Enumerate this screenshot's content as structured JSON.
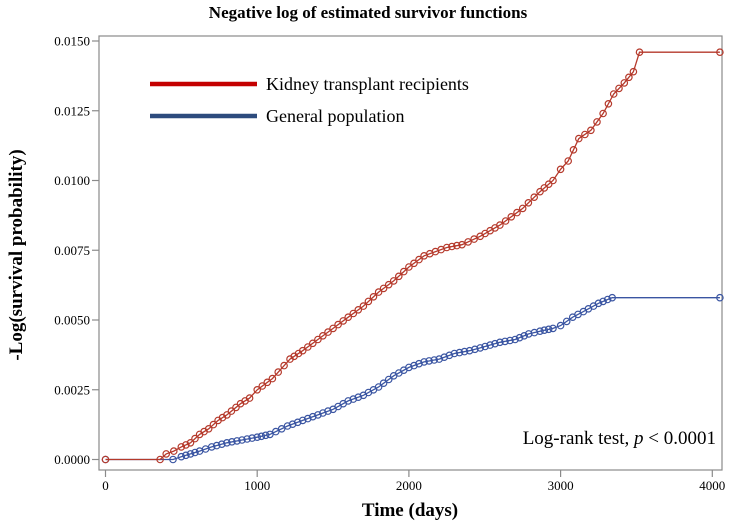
{
  "title": "Negative log of estimated survivor functions",
  "chart_data": {
    "type": "line",
    "title": "Negative log of estimated survivor functions",
    "xlabel": "Time (days)",
    "ylabel": "-Log(survival probability)",
    "xlim": [
      0,
      4064
    ],
    "ylim": [
      0,
      0.01518
    ],
    "x_ticks": [
      0,
      1000,
      2000,
      3000,
      4000
    ],
    "x_tick_labels": [
      "0",
      "1000",
      "2000",
      "3000",
      "4000"
    ],
    "y_ticks": [
      0,
      0.0025,
      0.005,
      0.0075,
      0.01,
      0.0125,
      0.015
    ],
    "y_tick_labels": [
      "0.0000",
      "0.0025",
      "0.0050",
      "0.0075",
      "0.0100",
      "0.0125",
      "0.0150"
    ],
    "grid": false,
    "legend_position": "inside-top-left",
    "marker": "open-circle",
    "annotation": {
      "prefix": "Log-rank test, ",
      "p": "p",
      "suffix": " < 0.0001"
    },
    "axis_color": "#8a8a8a",
    "series": [
      {
        "name": "Kidney transplant recipients",
        "color": "#b5392b",
        "legend_color": "#c40000",
        "flat_segments": [
          [
            0,
            360
          ],
          [
            3520,
            4050
          ]
        ],
        "points": [
          [
            0,
            0
          ],
          [
            360,
            0
          ],
          [
            400,
            0.0002
          ],
          [
            450,
            0.0003
          ],
          [
            500,
            0.00045
          ],
          [
            560,
            0.0006
          ],
          [
            620,
            0.0009
          ],
          [
            680,
            0.0011
          ],
          [
            742,
            0.0014
          ],
          [
            800,
            0.0016
          ],
          [
            890,
            0.002
          ],
          [
            950,
            0.0022
          ],
          [
            1000,
            0.0025
          ],
          [
            1100,
            0.0029
          ],
          [
            1216,
            0.0036
          ],
          [
            1300,
            0.0039
          ],
          [
            1400,
            0.0043
          ],
          [
            1500,
            0.0047
          ],
          [
            1600,
            0.0051
          ],
          [
            1700,
            0.0055
          ],
          [
            1800,
            0.006
          ],
          [
            1900,
            0.0064
          ],
          [
            2000,
            0.0069
          ],
          [
            2100,
            0.0073
          ],
          [
            2250,
            0.0076
          ],
          [
            2350,
            0.0077
          ],
          [
            2470,
            0.008
          ],
          [
            2600,
            0.0084
          ],
          [
            2750,
            0.009
          ],
          [
            2864,
            0.0096
          ],
          [
            2950,
            0.01
          ],
          [
            3000,
            0.0104
          ],
          [
            3050,
            0.0107
          ],
          [
            3120,
            0.0115
          ],
          [
            3200,
            0.0118
          ],
          [
            3280,
            0.0124
          ],
          [
            3350,
            0.0131
          ],
          [
            3420,
            0.0135
          ],
          [
            3480,
            0.0139
          ],
          [
            3520,
            0.0146
          ],
          [
            4050,
            0.0146
          ]
        ]
      },
      {
        "name": "General population",
        "color": "#3a55a2",
        "legend_color": "#2d4b7d",
        "flat_segments": [
          [
            0,
            445
          ],
          [
            3340,
            4050
          ]
        ],
        "points": [
          [
            0,
            0
          ],
          [
            445,
            0
          ],
          [
            500,
            0.0001
          ],
          [
            560,
            0.0002
          ],
          [
            620,
            0.0003
          ],
          [
            700,
            0.00045
          ],
          [
            800,
            0.0006
          ],
          [
            900,
            0.0007
          ],
          [
            1000,
            0.0008
          ],
          [
            1084,
            0.0009
          ],
          [
            1200,
            0.0012
          ],
          [
            1300,
            0.0014
          ],
          [
            1400,
            0.0016
          ],
          [
            1500,
            0.0018
          ],
          [
            1600,
            0.0021
          ],
          [
            1700,
            0.0023
          ],
          [
            1800,
            0.0026
          ],
          [
            1900,
            0.003
          ],
          [
            2000,
            0.0033
          ],
          [
            2100,
            0.0035
          ],
          [
            2200,
            0.0036
          ],
          [
            2300,
            0.0038
          ],
          [
            2400,
            0.0039
          ],
          [
            2470,
            0.004
          ],
          [
            2600,
            0.0042
          ],
          [
            2700,
            0.0043
          ],
          [
            2790,
            0.0045
          ],
          [
            2864,
            0.0046
          ],
          [
            2950,
            0.0047
          ],
          [
            3000,
            0.0048
          ],
          [
            3080,
            0.0051
          ],
          [
            3150,
            0.0053
          ],
          [
            3250,
            0.0056
          ],
          [
            3340,
            0.0058
          ],
          [
            4050,
            0.0058
          ]
        ]
      }
    ]
  }
}
